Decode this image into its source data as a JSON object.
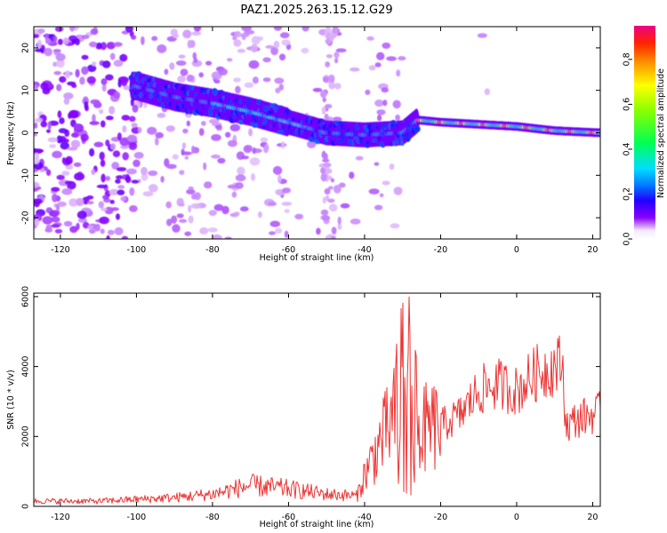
{
  "chart_data": [
    {
      "type": "heatmap",
      "title": "PAZ1.2025.263.15.12.G29",
      "xlabel": "Height of straight line (km)",
      "ylabel": "Frequency (Hz)",
      "xlim": [
        -127,
        22
      ],
      "ylim": [
        -25,
        25
      ],
      "x_ticks": [
        -120,
        -100,
        -80,
        -60,
        -40,
        -20,
        0,
        20
      ],
      "y_ticks": [
        -20,
        -10,
        0,
        10,
        20
      ],
      "colorbar": {
        "label": "Normalized spectral amplitude",
        "range": [
          0,
          0.95
        ],
        "ticks": [
          0.0,
          0.2,
          0.4,
          0.6,
          0.8
        ]
      },
      "ridge": [
        {
          "x": -100,
          "y": 11
        },
        {
          "x": -90,
          "y": 8.5
        },
        {
          "x": -80,
          "y": 7
        },
        {
          "x": -70,
          "y": 5
        },
        {
          "x": -60,
          "y": 2.5
        },
        {
          "x": -50,
          "y": 0
        },
        {
          "x": -40,
          "y": -0.5
        },
        {
          "x": -30,
          "y": 0
        },
        {
          "x": -26,
          "y": 3
        },
        {
          "x": -20,
          "y": 2.5
        },
        {
          "x": -10,
          "y": 2
        },
        {
          "x": 0,
          "y": 1.5
        },
        {
          "x": 10,
          "y": 0.5
        },
        {
          "x": 22,
          "y": 0
        }
      ]
    },
    {
      "type": "line",
      "xlabel": "Height of straight line (km)",
      "ylabel": "SNR (10 * v/v)",
      "xlim": [
        -127,
        22
      ],
      "ylim": [
        0,
        6100
      ],
      "x_ticks": [
        -120,
        -100,
        -80,
        -60,
        -40,
        -20,
        0,
        20
      ],
      "y_ticks": [
        0,
        2000,
        4000,
        6000
      ],
      "series": [
        {
          "name": "SNR",
          "color": "#ee3333",
          "envelope": [
            {
              "x": -127,
              "y": 150
            },
            {
              "x": -110,
              "y": 150
            },
            {
              "x": -90,
              "y": 250
            },
            {
              "x": -80,
              "y": 350
            },
            {
              "x": -70,
              "y": 600
            },
            {
              "x": -60,
              "y": 500
            },
            {
              "x": -50,
              "y": 350
            },
            {
              "x": -42,
              "y": 300
            },
            {
              "x": -40,
              "y": 900
            },
            {
              "x": -36,
              "y": 1800
            },
            {
              "x": -32,
              "y": 2600
            },
            {
              "x": -29,
              "y": 3100
            },
            {
              "x": -25,
              "y": 2200
            },
            {
              "x": -20,
              "y": 2300
            },
            {
              "x": -15,
              "y": 2600
            },
            {
              "x": -10,
              "y": 3300
            },
            {
              "x": -5,
              "y": 3500
            },
            {
              "x": 0,
              "y": 3300
            },
            {
              "x": 5,
              "y": 3800
            },
            {
              "x": 12,
              "y": 4100
            },
            {
              "x": 13,
              "y": 2300
            },
            {
              "x": 16,
              "y": 2500
            },
            {
              "x": 22,
              "y": 2700
            }
          ]
        }
      ]
    }
  ]
}
